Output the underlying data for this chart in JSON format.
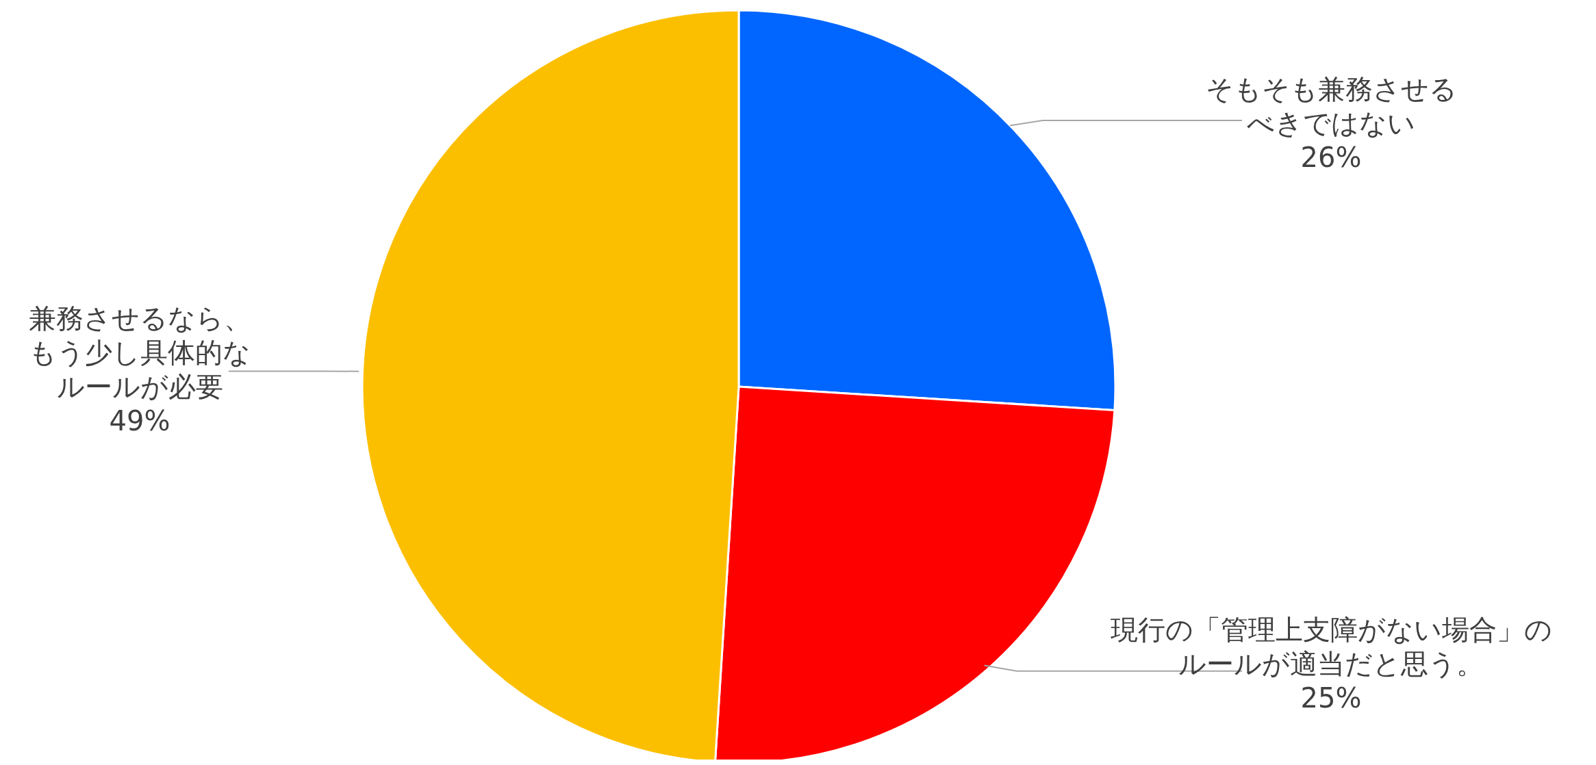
{
  "chart_data": {
    "type": "pie",
    "categories": [
      "そもそも兼務させるべきではない",
      "現行の「管理上支障がない場合」のルールが適当だと思う。",
      "兼務させるなら、もう少し具体的なルールが必要"
    ],
    "values": [
      26,
      25,
      49
    ],
    "colors": [
      "#0066ff",
      "#ff0000",
      "#fcbf00"
    ],
    "value_labels": [
      "26%",
      "25%",
      "49%"
    ],
    "legend": false
  }
}
